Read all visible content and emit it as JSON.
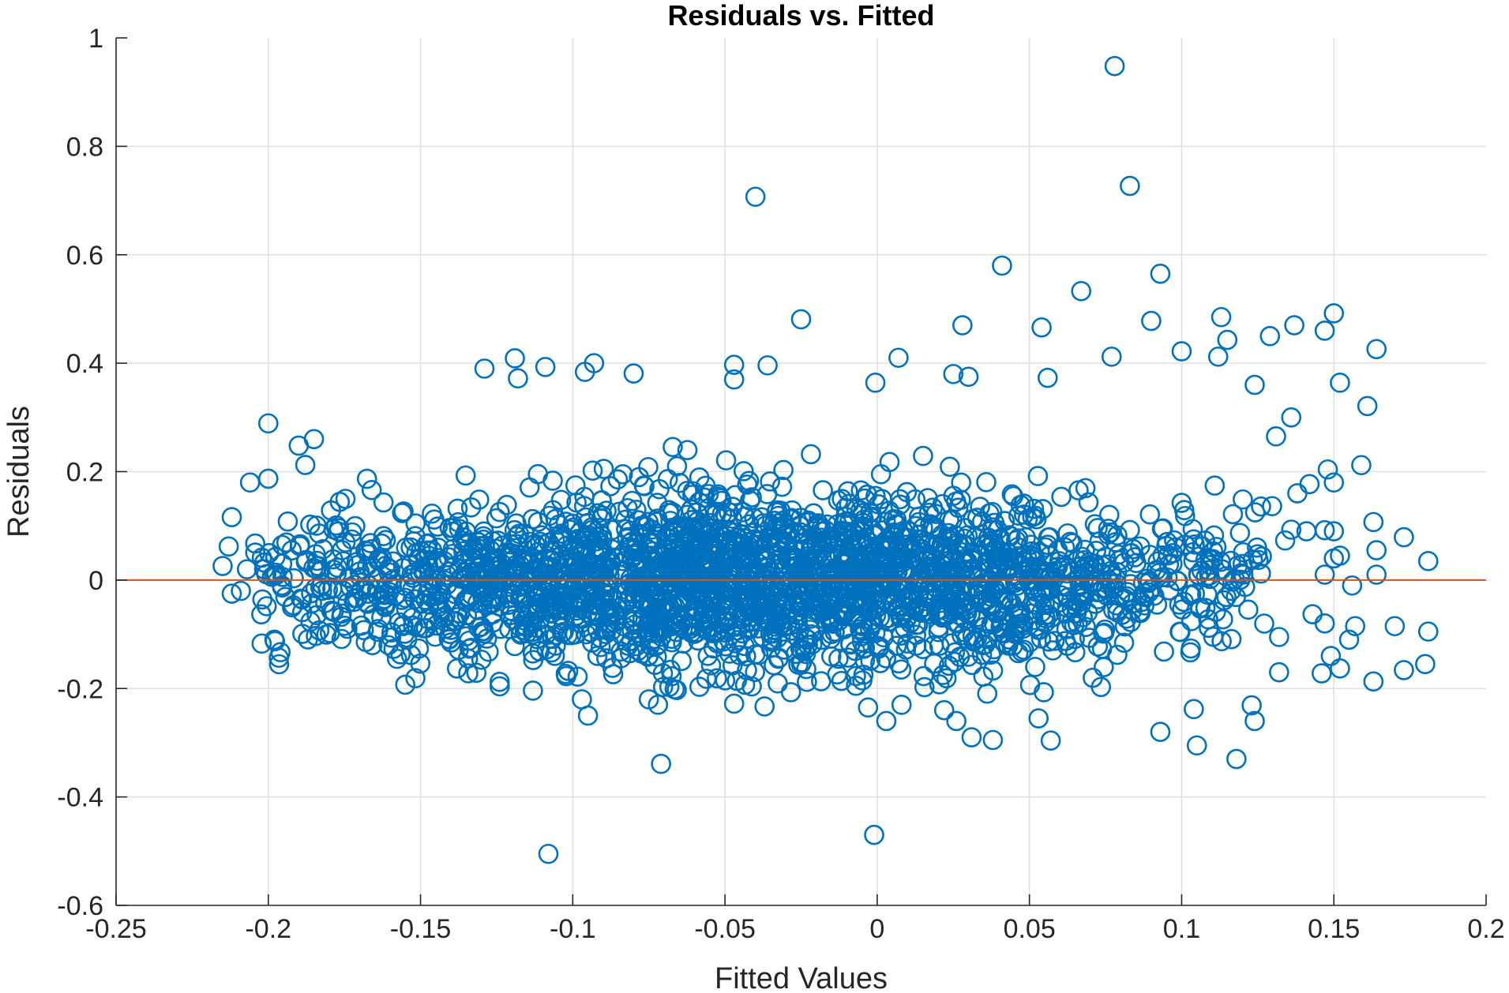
{
  "chart_data": {
    "type": "scatter",
    "title": "Residuals vs. Fitted",
    "xlabel": "Fitted Values",
    "ylabel": "Residuals",
    "xlim": [
      -0.25,
      0.2
    ],
    "ylim": [
      -0.6,
      1
    ],
    "x_ticks": [
      "-0.25",
      "-0.2",
      "-0.15",
      "-0.1",
      "-0.05",
      "0",
      "0.05",
      "0.1",
      "0.15",
      "0.2"
    ],
    "y_ticks": [
      "-0.6",
      "-0.4",
      "-0.2",
      "0",
      "0.2",
      "0.4",
      "0.6",
      "0.8",
      "1"
    ],
    "grid": true,
    "marker": "open-circle",
    "colors": {
      "points": "#0072BD",
      "reference_line": "#D95319",
      "axes": "#262626",
      "grid": "#dfdfdf"
    },
    "reference_line": {
      "y": 0
    },
    "series": [
      {
        "points": [
          [
            0.078,
            0.948
          ],
          [
            0.083,
            0.727
          ],
          [
            -0.04,
            0.707
          ],
          [
            0.041,
            0.58
          ],
          [
            0.093,
            0.565
          ],
          [
            0.067,
            0.533
          ],
          [
            0.15,
            0.492
          ],
          [
            0.113,
            0.485
          ],
          [
            0.09,
            0.478
          ],
          [
            -0.025,
            0.481
          ],
          [
            0.028,
            0.47
          ],
          [
            0.054,
            0.466
          ],
          [
            0.137,
            0.47
          ],
          [
            0.147,
            0.46
          ],
          [
            0.129,
            0.45
          ],
          [
            0.115,
            0.443
          ],
          [
            0.164,
            0.426
          ],
          [
            0.1,
            0.422
          ],
          [
            0.112,
            0.412
          ],
          [
            0.077,
            0.412
          ],
          [
            0.007,
            0.41
          ],
          [
            -0.119,
            0.409
          ],
          [
            -0.093,
            0.4
          ],
          [
            -0.109,
            0.393
          ],
          [
            -0.047,
            0.397
          ],
          [
            -0.036,
            0.396
          ],
          [
            -0.129,
            0.39
          ],
          [
            -0.096,
            0.384
          ],
          [
            -0.08,
            0.381
          ],
          [
            0.025,
            0.38
          ],
          [
            0.03,
            0.375
          ],
          [
            0.056,
            0.373
          ],
          [
            -0.118,
            0.372
          ],
          [
            -0.047,
            0.37
          ],
          [
            0.152,
            0.364
          ],
          [
            -0.0006,
            0.364
          ],
          [
            0.124,
            0.36
          ],
          [
            0.161,
            0.321
          ],
          [
            0.136,
            0.3
          ],
          [
            0.131,
            0.265
          ],
          [
            -0.2,
            0.289
          ],
          [
            -0.185,
            0.26
          ],
          [
            -0.19,
            0.248
          ],
          [
            -0.206,
            0.18
          ],
          [
            -0.2,
            0.187
          ],
          [
            -0.212,
            0.116
          ],
          [
            -0.213,
            0.062
          ],
          [
            -0.215,
            0.026
          ],
          [
            -0.207,
            0.02
          ],
          [
            -0.212,
            -0.025
          ],
          [
            -0.209,
            -0.02
          ],
          [
            -0.196,
            -0.133
          ],
          [
            -0.198,
            -0.11
          ],
          [
            -0.155,
            -0.193
          ],
          [
            -0.13,
            -0.147
          ],
          [
            -0.124,
            -0.196
          ],
          [
            -0.095,
            -0.25
          ],
          [
            -0.097,
            -0.22
          ],
          [
            -0.075,
            -0.22
          ],
          [
            -0.072,
            -0.23
          ],
          [
            -0.047,
            -0.228
          ],
          [
            -0.037,
            -0.233
          ],
          [
            -0.003,
            -0.235
          ],
          [
            0.003,
            -0.26
          ],
          [
            0.008,
            -0.23
          ],
          [
            0.022,
            -0.24
          ],
          [
            0.026,
            -0.26
          ],
          [
            0.031,
            -0.29
          ],
          [
            0.038,
            -0.295
          ],
          [
            0.053,
            -0.255
          ],
          [
            0.057,
            -0.296
          ],
          [
            0.093,
            -0.28
          ],
          [
            0.105,
            -0.305
          ],
          [
            0.104,
            -0.238
          ],
          [
            0.118,
            -0.33
          ],
          [
            0.124,
            -0.26
          ],
          [
            0.123,
            -0.231
          ],
          [
            0.132,
            -0.17
          ],
          [
            0.146,
            -0.172
          ],
          [
            0.152,
            -0.163
          ],
          [
            0.163,
            -0.187
          ],
          [
            0.173,
            -0.166
          ],
          [
            0.18,
            -0.155
          ],
          [
            0.181,
            -0.095
          ],
          [
            0.17,
            -0.085
          ],
          [
            0.157,
            -0.085
          ],
          [
            0.147,
            -0.08
          ],
          [
            0.143,
            -0.063
          ],
          [
            0.132,
            -0.105
          ],
          [
            0.155,
            -0.11
          ],
          [
            0.149,
            -0.14
          ],
          [
            0.164,
            0.01
          ],
          [
            0.164,
            0.055
          ],
          [
            0.156,
            -0.01
          ],
          [
            0.147,
            0.01
          ],
          [
            0.15,
            0.04
          ],
          [
            0.152,
            0.045
          ],
          [
            0.134,
            0.073
          ],
          [
            0.163,
            0.107
          ],
          [
            0.173,
            0.079
          ],
          [
            0.181,
            0.035
          ],
          [
            0.147,
            0.092
          ],
          [
            0.15,
            0.09
          ],
          [
            0.141,
            0.09
          ],
          [
            0.136,
            0.093
          ],
          [
            0.138,
            0.16
          ],
          [
            0.142,
            0.177
          ],
          [
            0.148,
            0.204
          ],
          [
            0.15,
            0.18
          ],
          [
            0.159,
            0.212
          ],
          [
            -0.071,
            -0.339
          ],
          [
            -0.108,
            -0.505
          ],
          [
            -0.001,
            -0.47
          ]
        ]
      }
    ]
  }
}
